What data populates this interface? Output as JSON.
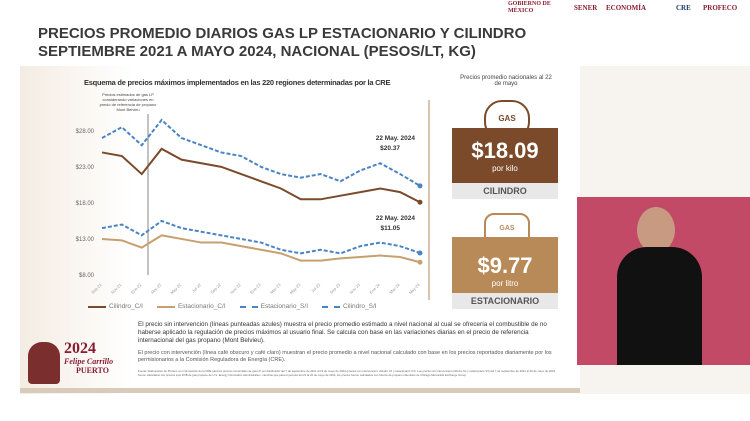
{
  "header": {
    "logos": [
      "GOBIERNO DE MÉXICO",
      "SENER",
      "ECONOMÍA",
      "CRE",
      "PROFECO"
    ]
  },
  "title": {
    "line1": "PRECIOS PROMEDIO DIARIOS GAS LP ESTACIONARIO Y CILINDRO",
    "line2": "SEPTIEMBRE 2021 A MAYO 2024, NACIONAL (PESOS/LT, KG)"
  },
  "annotation": "Precios estimados de gas LP considerando variaciones en precio de referencia de propano Mont Belvieu",
  "side": {
    "caption": "Precios promedio nacionales al 22 de mayo",
    "cilindro": {
      "icon": "gas-cylinder-icon",
      "tag": "GAS",
      "price": "$18.09",
      "unit": "por kilo",
      "label": "CILINDRO",
      "color": "#7a4a2a"
    },
    "estacionario": {
      "icon": "gas-tank-icon",
      "tag": "GAS",
      "price": "$9.77",
      "unit": "por litro",
      "label": "ESTACIONARIO",
      "color": "#b88a58"
    }
  },
  "text": {
    "p1": "El precio sin intervención (líneas punteadas azules) muestra el precio promedio estimado a nivel nacional al cual se ofrecería el combustible de no haberse aplicado la regulación de precios máximos al usuario final. Se calcula con base en las variaciones diarias en el precio de referencia internacional del gas propano (Mont Belvieu).",
    "p2": "El precio con intervención (línea café obscuro y café claro) muestran el precio promedio a nivel nacional calculado con base en los precios reportados diariamente por los permisionarios a la Comisión Reguladora de Energía (CRE).",
    "source": "Fuente: Elaboración de Profeco con información de la CRE para los precios comerciales de gas LP por distribuidor del 7 de septiembre de 2021 al 22 de mayo de 2024 (precios con intervención: cilindro C/I y estacionario C/I). Los precios sin intervención (cilindro S/I y estacionario S/I) del 7 de septiembre de 2021 al 20 de mayo de 2024 fueron calculados con precios spot FOB de gas propano de U.S. Energy Information Administration, mientras que para el periodo del 21 al 22 de mayo de 2024, los precios fueron calculados con futuros de propano obtenidos de Chicago Mercantile Exchange Group."
  },
  "brand": {
    "year": "2024",
    "name": "Felipe Carrillo",
    "sub": "PUERTO"
  },
  "chart_data": {
    "type": "line",
    "title": "Esquema de precios máximos implementados en las 220 regiones determinadas por la CRE",
    "x": [
      "Sep-21",
      "Nov-21",
      "Ene-22",
      "Mar-22",
      "May-22",
      "Jul-22",
      "Sep-22",
      "Nov-22",
      "Ene-23",
      "Mar-23",
      "May-23",
      "Jul-23",
      "Sep-23",
      "Nov-23",
      "Ene-24",
      "Mar-24",
      "May-24"
    ],
    "yticks": [
      "$8.00",
      "$13.00",
      "$18.00",
      "$23.00",
      "$28.00"
    ],
    "ylim": [
      8,
      30
    ],
    "series": [
      {
        "name": "Cilindro_C/I",
        "color": "#7a4a2a",
        "dash": false,
        "values": [
          25,
          24.5,
          22,
          25.5,
          24,
          23.5,
          23,
          22,
          21,
          20,
          18.5,
          18.5,
          19,
          19.5,
          20,
          19.5,
          18.09
        ]
      },
      {
        "name": "Estacionario_C/I",
        "color": "#c8a070",
        "dash": false,
        "values": [
          13,
          12.8,
          11.8,
          13.5,
          13,
          12.5,
          12.5,
          12,
          11.5,
          11,
          10,
          10,
          10.3,
          10.5,
          10.7,
          10.5,
          9.77
        ]
      },
      {
        "name": "Estacionario_S/I",
        "color": "#4a84c4",
        "dash": true,
        "values": [
          14.5,
          15,
          13.5,
          15.5,
          14.5,
          14,
          13.5,
          13,
          12.5,
          11.5,
          11,
          11.5,
          11,
          12,
          12.5,
          12,
          11.05
        ]
      },
      {
        "name": "Cilindro_S/I",
        "color": "#4a84c4",
        "dash": true,
        "values": [
          27,
          28.5,
          26,
          29.5,
          27,
          26,
          25,
          24.5,
          23,
          22,
          21.5,
          22,
          21,
          22.5,
          23.5,
          22,
          20.37
        ]
      }
    ],
    "annotations": [
      {
        "date": "22 May. 2024",
        "value": "$20.37"
      },
      {
        "date": "22 May. 2024",
        "value": "$11.05"
      }
    ]
  }
}
